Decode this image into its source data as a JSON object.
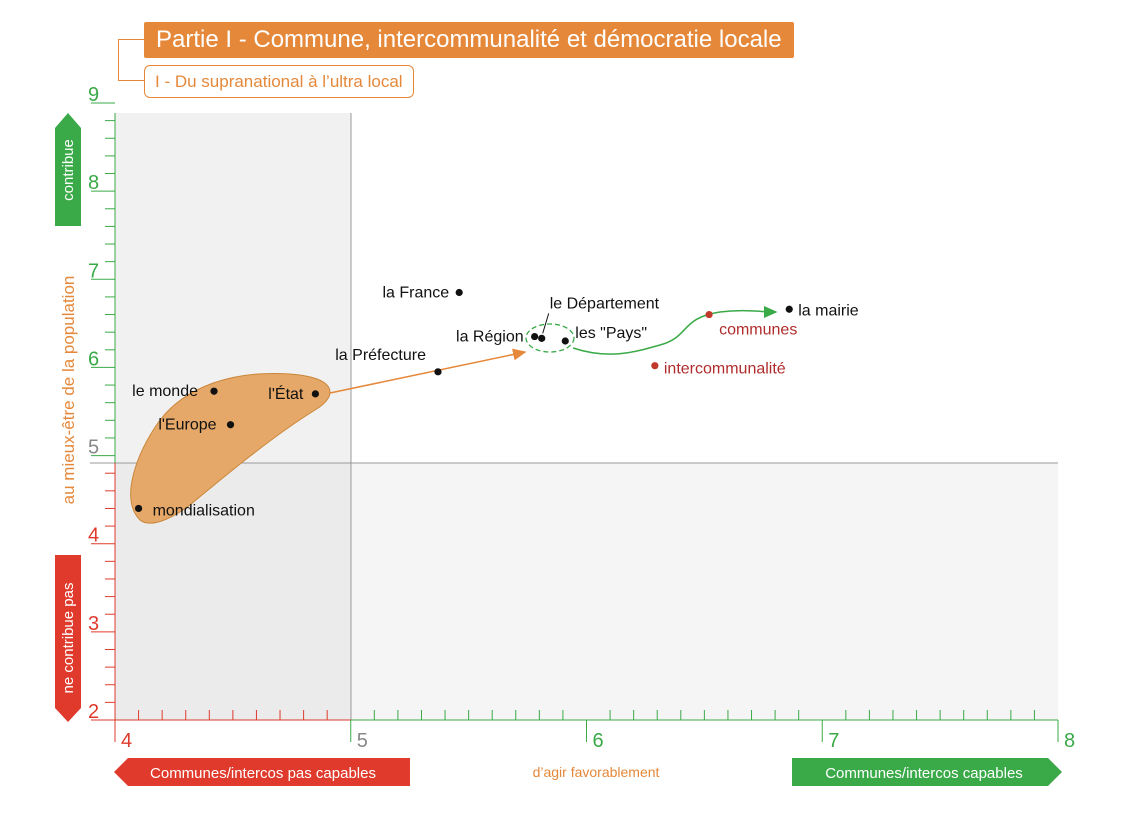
{
  "header": {
    "title": "Partie I - Commune, intercommunalité et démocratie locale",
    "subtitle": "I - Du supranational à l’ultra local"
  },
  "colors": {
    "orange": "#e5883a",
    "green": "#3aaa48",
    "red": "#e03a2c",
    "darkred": "#b02c2c"
  },
  "chart_data": {
    "type": "scatter",
    "xlim": [
      4,
      8
    ],
    "ylim": [
      2,
      9
    ],
    "x_ticks": [
      "4",
      "5",
      "6",
      "7",
      "8"
    ],
    "y_ticks": [
      "2",
      "3",
      "4",
      "5",
      "6",
      "7",
      "8",
      "9"
    ],
    "ylabel": "au mieux-être de la population",
    "y_top_label": "contribue",
    "y_bottom_label": "ne contribue pas",
    "xlabel": "d’agir favorablement",
    "x_left_label": "Communes/intercos pas capables",
    "x_right_label": "Communes/intercos capables",
    "points": [
      {
        "label": "mondialisation",
        "x": 4.1,
        "y": 4.4,
        "color": "black"
      },
      {
        "label": "le monde",
        "x": 4.42,
        "y": 5.73,
        "color": "black"
      },
      {
        "label": "l'Europe",
        "x": 4.49,
        "y": 5.35,
        "color": "black"
      },
      {
        "label": "l'État",
        "x": 4.85,
        "y": 5.7,
        "color": "black"
      },
      {
        "label": "la Préfecture",
        "x": 5.37,
        "y": 5.95,
        "color": "black"
      },
      {
        "label": "la France",
        "x": 5.46,
        "y": 6.85,
        "color": "black"
      },
      {
        "label": "la Région",
        "x": 5.78,
        "y": 6.35,
        "color": "black"
      },
      {
        "label": "le Département",
        "x": 5.81,
        "y": 6.33,
        "color": "black"
      },
      {
        "label": "les \"Pays\"",
        "x": 5.91,
        "y": 6.3,
        "color": "black"
      },
      {
        "label": "communes",
        "x": 6.52,
        "y": 6.6,
        "color": "red"
      },
      {
        "label": "intercommunalité",
        "x": 6.29,
        "y": 6.02,
        "color": "red"
      },
      {
        "label": "la mairie",
        "x": 6.86,
        "y": 6.66,
        "color": "black"
      }
    ],
    "threshold_x": 5,
    "threshold_y": 4.9
  }
}
